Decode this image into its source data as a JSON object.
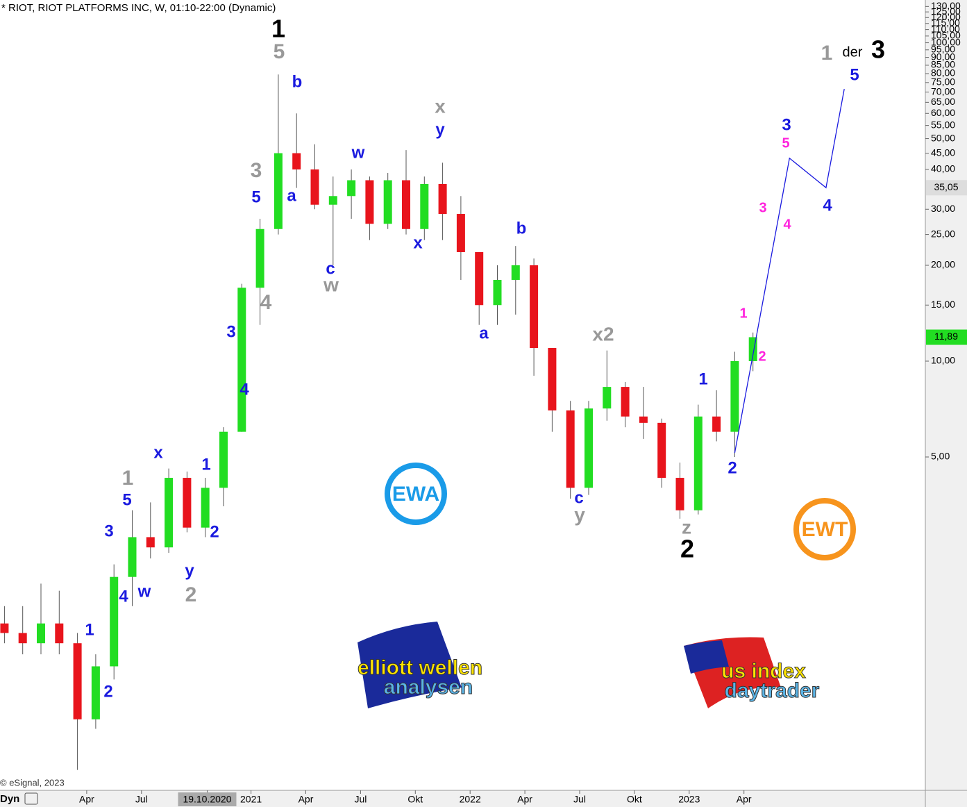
{
  "chart_data": {
    "type": "candlestick",
    "title": "* RIOT, RIOT PLATFORMS INC, W, 01:10-22:00 (Dynamic)",
    "copyright": "© eSignal, 2023",
    "mode_label": "Dyn",
    "log_scale": true,
    "up_color": "#22dd22",
    "down_color": "#e8141c",
    "x": [
      "2019-11",
      "2019-12",
      "2020-01",
      "2020-02",
      "2020-03",
      "2020-04",
      "2020-05",
      "2020-06",
      "2020-07",
      "2020-08",
      "2020-09",
      "2020-10",
      "2020-11",
      "2020-12",
      "2021-01",
      "2021-02",
      "2021-03",
      "2021-04",
      "2021-05",
      "2021-06",
      "2021-07",
      "2021-08",
      "2021-09",
      "2021-10",
      "2021-11",
      "2021-12",
      "2022-01",
      "2022-02",
      "2022-03",
      "2022-04",
      "2022-05",
      "2022-06",
      "2022-07",
      "2022-08",
      "2022-09",
      "2022-10",
      "2022-11",
      "2022-12",
      "2023-01",
      "2023-02",
      "2023-03",
      "2023-04"
    ],
    "open": [
      1.5,
      1.4,
      1.3,
      1.5,
      1.3,
      0.75,
      1.1,
      2.1,
      2.8,
      2.6,
      4.3,
      3.0,
      4.0,
      6.0,
      17,
      26,
      45,
      40,
      31,
      33,
      37,
      27,
      37,
      26,
      36,
      29,
      22,
      15,
      18,
      20,
      11,
      7,
      4.0,
      7.1,
      8.3,
      6.7,
      6.4,
      4.3,
      3.4,
      6.7,
      6.0,
      10.0
    ],
    "high": [
      1.7,
      1.7,
      2.0,
      1.9,
      1.4,
      1.2,
      2.3,
      3.4,
      3.6,
      4.6,
      4.5,
      4.3,
      6.2,
      17.5,
      28,
      79.5,
      60,
      48,
      38,
      40,
      38,
      39,
      46,
      38,
      42,
      33,
      22,
      20,
      23,
      21,
      11,
      7.5,
      7.5,
      10.8,
      8.6,
      8.3,
      6.6,
      4.8,
      7.3,
      8.1,
      10.7,
      12.3
    ],
    "low": [
      1.3,
      1.2,
      1.2,
      1.2,
      0.52,
      0.7,
      1.0,
      1.7,
      2.4,
      2.5,
      2.9,
      2.8,
      3.5,
      6.0,
      13,
      25,
      35,
      30,
      20,
      28,
      24,
      26,
      25,
      24,
      24,
      18,
      13,
      13,
      14,
      9,
      6,
      3.7,
      3.8,
      6.5,
      6.2,
      5.7,
      4.0,
      3.2,
      3.3,
      5.6,
      5.0,
      9.3
    ],
    "close": [
      1.4,
      1.3,
      1.5,
      1.3,
      0.75,
      1.1,
      2.1,
      2.8,
      2.6,
      4.3,
      3.0,
      4.0,
      6.0,
      17,
      26,
      45,
      40,
      31,
      33,
      37,
      27,
      37,
      26,
      36,
      29,
      22,
      15,
      18,
      20,
      11,
      7,
      4.0,
      7.1,
      8.3,
      6.7,
      6.4,
      4.3,
      3.4,
      6.7,
      6.0,
      10.0,
      11.89
    ],
    "ylim": [
      0.5,
      140
    ],
    "yticks": [
      {
        "value": 5,
        "label": "5,00"
      },
      {
        "value": 10,
        "label": "10,00"
      },
      {
        "value": 15,
        "label": "15,00"
      },
      {
        "value": 20,
        "label": "20,00"
      },
      {
        "value": 25,
        "label": "25,00"
      },
      {
        "value": 30,
        "label": "30,00"
      },
      {
        "value": 40,
        "label": "40,00"
      },
      {
        "value": 45,
        "label": "45,00"
      },
      {
        "value": 50,
        "label": "50,00"
      },
      {
        "value": 55,
        "label": "55,00"
      },
      {
        "value": 60,
        "label": "60,00"
      },
      {
        "value": 65,
        "label": "65,00"
      },
      {
        "value": 70,
        "label": "70,00"
      },
      {
        "value": 75,
        "label": "75,00"
      },
      {
        "value": 80,
        "label": "80,00"
      },
      {
        "value": 85,
        "label": "85,00"
      },
      {
        "value": 90,
        "label": "90,00"
      },
      {
        "value": 95,
        "label": "95,00"
      },
      {
        "value": 100,
        "label": "100,00"
      },
      {
        "value": 105,
        "label": "105,00"
      },
      {
        "value": 110,
        "label": "110,00"
      },
      {
        "value": 115,
        "label": "115,00"
      },
      {
        "value": 120,
        "label": "120,00"
      },
      {
        "value": 125,
        "label": "125,00"
      },
      {
        "value": 130,
        "label": "130,00"
      }
    ],
    "xticks": [
      {
        "value": "2020-04",
        "label": "Apr"
      },
      {
        "value": "2020-07",
        "label": "Jul"
      },
      {
        "value": "2020-10-19",
        "label": "19.10.2020"
      },
      {
        "value": "2021-01",
        "label": "2021"
      },
      {
        "value": "2021-04",
        "label": "Apr"
      },
      {
        "value": "2021-07",
        "label": "Jul"
      },
      {
        "value": "2021-10",
        "label": "Okt"
      },
      {
        "value": "2022-01",
        "label": "2022"
      },
      {
        "value": "2022-04",
        "label": "Apr"
      },
      {
        "value": "2022-07",
        "label": "Jul"
      },
      {
        "value": "2022-10",
        "label": "Okt"
      },
      {
        "value": "2023-01",
        "label": "2023"
      },
      {
        "value": "2023-04",
        "label": "Apr"
      }
    ],
    "price_markers": [
      {
        "value": 35.05,
        "label": "35,05",
        "color": "#dddddd"
      },
      {
        "value": 11.89,
        "label": "11,89",
        "color": "#22dd22"
      }
    ],
    "projection": {
      "color": "#1a1adf",
      "x": [
        "2023-03",
        "2023-06",
        "2023-08",
        "2023-09"
      ],
      "values": [
        5.15,
        43.4,
        35.05,
        71.6
      ]
    },
    "annotations": [
      {
        "text": "1",
        "color": "#000"
      },
      {
        "text": "2",
        "color": "#000"
      },
      {
        "text": "3",
        "color": "#000"
      },
      {
        "text": "der",
        "color": "#000"
      },
      {
        "text": "5",
        "color": "#999"
      },
      {
        "text": "3",
        "color": "#999"
      },
      {
        "text": "4",
        "color": "#999"
      },
      {
        "text": "1",
        "color": "#999"
      },
      {
        "text": "2",
        "color": "#999"
      },
      {
        "text": "x",
        "color": "#999"
      },
      {
        "text": "w",
        "color": "#999"
      },
      {
        "text": "y",
        "color": "#999"
      },
      {
        "text": "x2",
        "color": "#999"
      },
      {
        "text": "z",
        "color": "#999"
      },
      {
        "text": "1",
        "color": "#999"
      },
      {
        "text": "b",
        "color": "#1a1adf"
      },
      {
        "text": "a",
        "color": "#1a1adf"
      },
      {
        "text": "c",
        "color": "#1a1adf"
      },
      {
        "text": "5",
        "color": "#1a1adf"
      },
      {
        "text": "3",
        "color": "#1a1adf"
      },
      {
        "text": "4",
        "color": "#1a1adf"
      },
      {
        "text": "w",
        "color": "#1a1adf"
      },
      {
        "text": "x",
        "color": "#1a1adf"
      },
      {
        "text": "y",
        "color": "#1a1adf"
      },
      {
        "text": "b",
        "color": "#1a1adf"
      },
      {
        "text": "a",
        "color": "#1a1adf"
      },
      {
        "text": "c",
        "color": "#1a1adf"
      },
      {
        "text": "1",
        "color": "#1a1adf"
      },
      {
        "text": "2",
        "color": "#1a1adf"
      },
      {
        "text": "x",
        "color": "#1a1adf"
      },
      {
        "text": "y",
        "color": "#1a1adf"
      },
      {
        "text": "5",
        "color": "#1a1adf"
      },
      {
        "text": "3",
        "color": "#1a1adf"
      },
      {
        "text": "4",
        "color": "#1a1adf"
      },
      {
        "text": "w",
        "color": "#1a1adf"
      },
      {
        "text": "1",
        "color": "#1a1adf"
      },
      {
        "text": "2",
        "color": "#1a1adf"
      },
      {
        "text": "1",
        "color": "#1a1adf"
      },
      {
        "text": "2",
        "color": "#1a1adf"
      },
      {
        "text": "3",
        "color": "#1a1adf"
      },
      {
        "text": "4",
        "color": "#1a1adf"
      },
      {
        "text": "5",
        "color": "#1a1adf"
      },
      {
        "text": "1",
        "color": "#ff22dd"
      },
      {
        "text": "2",
        "color": "#ff22dd"
      },
      {
        "text": "3",
        "color": "#ff22dd"
      },
      {
        "text": "4",
        "color": "#ff22dd"
      },
      {
        "text": "5",
        "color": "#ff22dd"
      }
    ],
    "logos": [
      {
        "text": "EWA",
        "color": "#1a9be8"
      },
      {
        "text": "EWT",
        "color": "#f7941d"
      }
    ],
    "brands": [
      {
        "line1": "elliott wellen",
        "line2": "analysen"
      },
      {
        "line1": "us index",
        "line2": "daytrader"
      }
    ]
  }
}
